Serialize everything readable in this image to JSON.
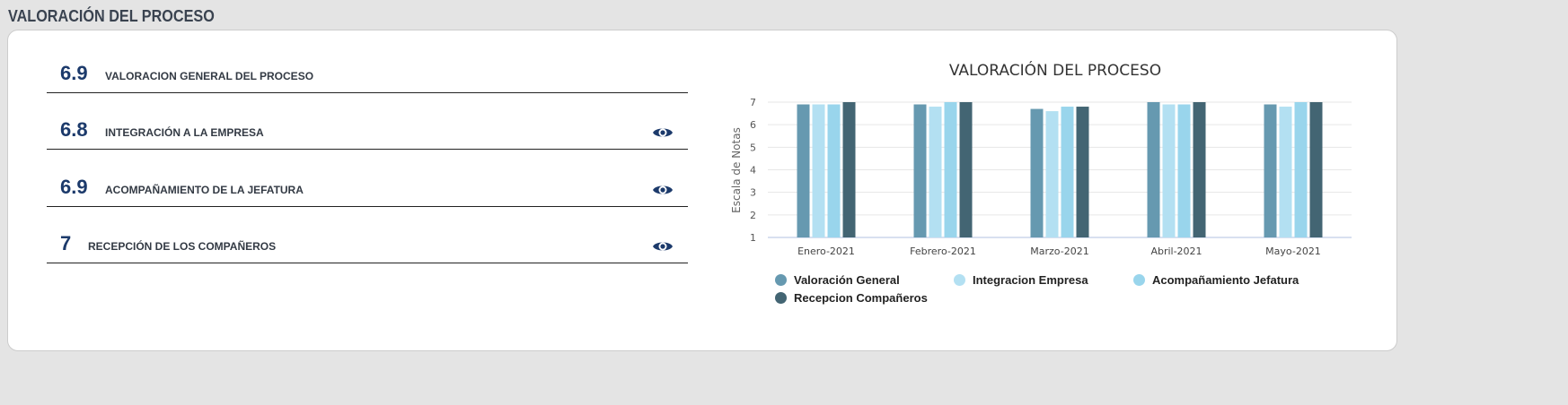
{
  "page_title": "VALORACIÓN DEL PROCESO",
  "items": [
    {
      "value": "6.9",
      "label": "VALORACION GENERAL DEL PROCESO",
      "eye": false
    },
    {
      "value": "6.8",
      "label": "INTEGRACIÓN A LA EMPRESA",
      "eye": true
    },
    {
      "value": "6.9",
      "label": "ACOMPAÑAMIENTO DE LA JEFATURA",
      "eye": true
    },
    {
      "value": "7",
      "label": "RECEPCIÓN DE LOS COMPAÑEROS",
      "eye": true
    }
  ],
  "chart_data": {
    "type": "bar",
    "title": "VALORACIÓN DEL PROCESO",
    "ylabel": "Escala de Notas",
    "xlabel": "",
    "ylim": [
      1,
      7
    ],
    "yticks": [
      "1",
      "2",
      "3",
      "4",
      "5",
      "6",
      "7"
    ],
    "categories": [
      "Enero-2021",
      "Febrero-2021",
      "Marzo-2021",
      "Abril-2021",
      "Mayo-2021"
    ],
    "series": [
      {
        "name": "Valoración General",
        "color": "#6699b0",
        "values": [
          6.9,
          6.9,
          6.7,
          7,
          6.9
        ]
      },
      {
        "name": "Integracion Empresa",
        "color": "#b3e0f2",
        "values": [
          6.9,
          6.8,
          6.6,
          6.9,
          6.8
        ]
      },
      {
        "name": "Acompañamiento Jefatura",
        "color": "#99d5ec",
        "values": [
          6.9,
          7,
          6.8,
          6.9,
          7
        ]
      },
      {
        "name": "Recepcion Compañeros",
        "color": "#436573",
        "values": [
          7,
          7,
          6.8,
          7,
          7
        ]
      }
    ],
    "grid": true,
    "legend": "bottom"
  }
}
